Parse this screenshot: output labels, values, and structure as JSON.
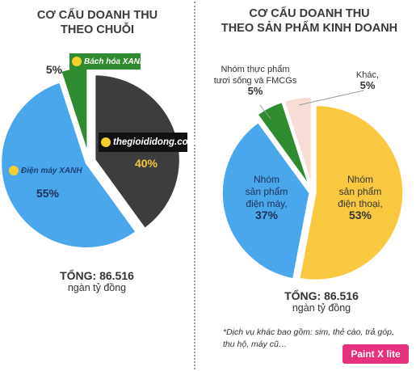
{
  "left": {
    "title_line1": "CƠ CẤU DOANH THU",
    "title_line2": "THEO CHUỖI",
    "total_value": "TỔNG: 86.516",
    "total_unit": "ngàn tỷ đồng",
    "logos": {
      "bhx": "Bách hóa XANH",
      "dmx": "Điện máy XANH",
      "tgdd": "thegioididong.com"
    }
  },
  "right": {
    "title_line1": "CƠ CẤU DOANH THU",
    "title_line2": "THEO SẢN PHẨM KINH DOANH",
    "total_value": "TỔNG: 86.516",
    "total_unit": "ngàn tỷ đồng",
    "note_line1": "*Dịch vụ khác bao gồm: sim, thẻ cào, trả góp,",
    "note_line2": "thu hộ, máy cũ…"
  },
  "badge": "Paint X lite",
  "colors": {
    "dark": "#3d3d3d",
    "blue": "#4aa7ec",
    "green": "#2f8b2f",
    "yellow": "#f8c840",
    "pink": "#f7ddd6"
  },
  "chart_data": [
    {
      "type": "pie",
      "title": "CƠ CẤU DOANH THU THEO CHUỖI",
      "categories": [
        "thegioididong.com",
        "Điện máy XANH",
        "Bách hóa XANH"
      ],
      "values": [
        40,
        55,
        5
      ],
      "labels": [
        "40%",
        "55%",
        "5%"
      ],
      "colors": [
        "#3d3d3d",
        "#4aa7ec",
        "#2f8b2f"
      ],
      "exploded": true
    },
    {
      "type": "pie",
      "title": "CƠ CẤU DOANH THU THEO SẢN PHẨM KINH DOANH",
      "categories": [
        "Nhóm sản phẩm điện thoại",
        "Nhóm sản phẩm điện máy",
        "Nhóm thực phẩm tươi sống và FMCGs",
        "Khác"
      ],
      "values": [
        53,
        37,
        5,
        5
      ],
      "labels": [
        [
          "Nhóm",
          "sản phẩm",
          "điện thoại,",
          "53%"
        ],
        [
          "Nhóm",
          "sản phẩm",
          "điện máy,",
          "37%"
        ],
        [
          "Nhóm thực phẩm",
          "tươi sống và FMCGs",
          "5%"
        ],
        [
          "Khác,",
          "5%"
        ]
      ],
      "colors": [
        "#f8c840",
        "#4aa7ec",
        "#2f8b2f",
        "#f7ddd6"
      ],
      "exploded": true
    }
  ]
}
